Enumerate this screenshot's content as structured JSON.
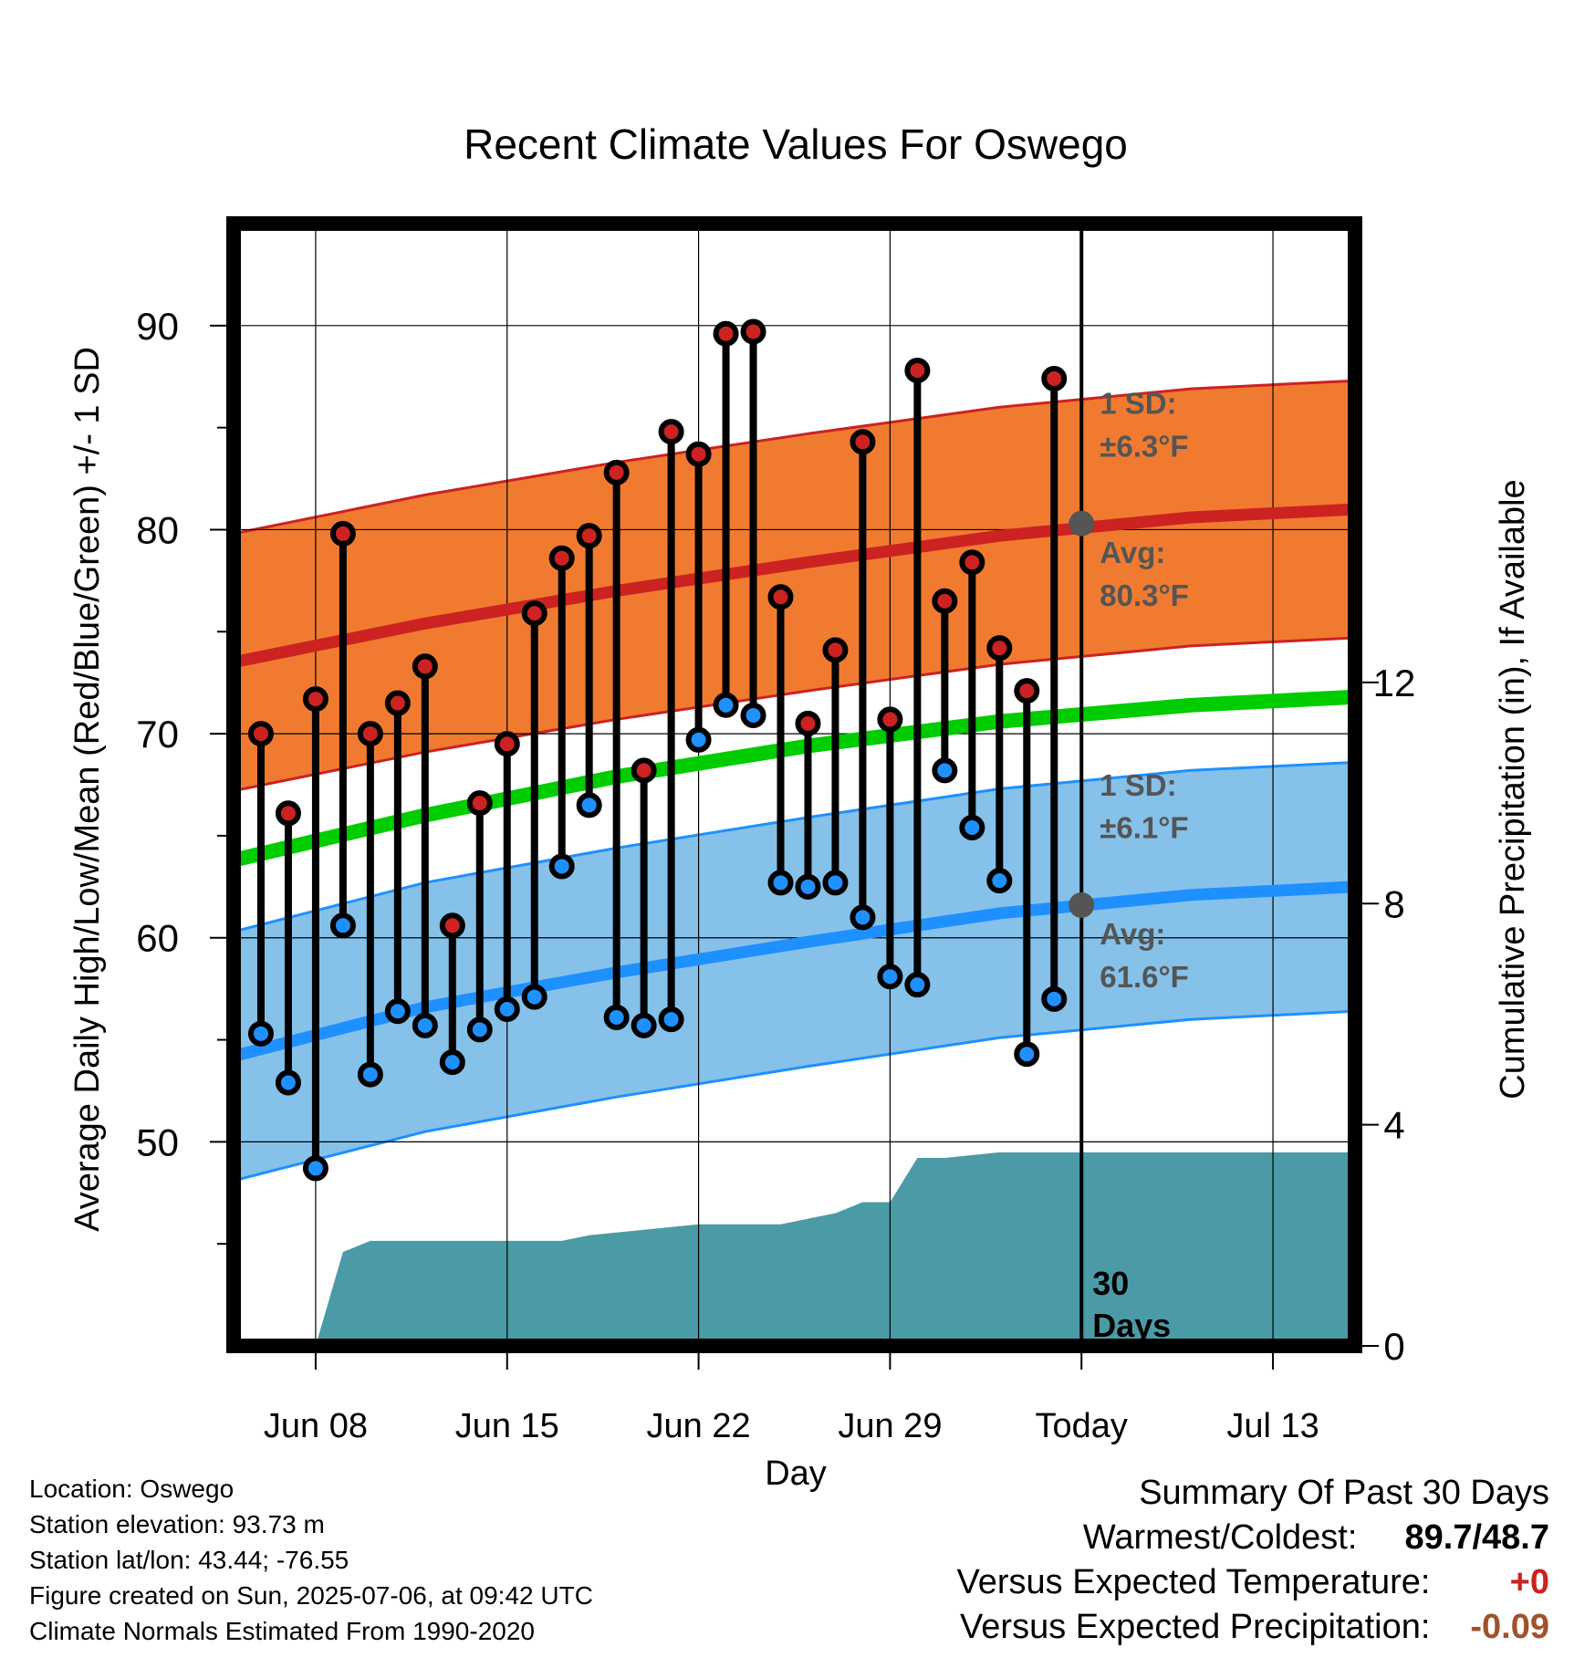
{
  "chart_data": {
    "type": "line",
    "title": "Recent Climate Values For Oswego",
    "xlabel": "Day",
    "ylabel": "Average Daily High/Low/Mean (Red/Blue/Green) +/- 1 SD",
    "y2label": "Cumulative Precipitation (in), If Available",
    "ylim": [
      40,
      95
    ],
    "y2lim": [
      0,
      20.3
    ],
    "yticks": [
      50,
      60,
      70,
      80,
      90
    ],
    "y2ticks": [
      0,
      4,
      8,
      12
    ],
    "x_tick_labels": [
      "Jun 08",
      "Jun 15",
      "Jun 22",
      "Jun 29",
      "Today",
      "Jul 13"
    ],
    "xlim": [
      "2025-06-05",
      "2025-07-16"
    ],
    "x_ticks": [
      "2025-06-08",
      "2025-06-15",
      "2025-06-22",
      "2025-06-29",
      "2025-07-06",
      "2025-07-13"
    ],
    "today": "2025-07-06",
    "grid": true,
    "series": [
      {
        "name": "Daily High",
        "color": "#cc2222",
        "dates": [
          "2025-06-06",
          "2025-06-07",
          "2025-06-08",
          "2025-06-09",
          "2025-06-10",
          "2025-06-11",
          "2025-06-12",
          "2025-06-13",
          "2025-06-14",
          "2025-06-15",
          "2025-06-16",
          "2025-06-17",
          "2025-06-18",
          "2025-06-19",
          "2025-06-20",
          "2025-06-21",
          "2025-06-22",
          "2025-06-23",
          "2025-06-24",
          "2025-06-25",
          "2025-06-26",
          "2025-06-27",
          "2025-06-28",
          "2025-06-29",
          "2025-06-30",
          "2025-07-01",
          "2025-07-02",
          "2025-07-03",
          "2025-07-04",
          "2025-07-05"
        ],
        "values": [
          70.0,
          66.1,
          71.7,
          79.8,
          70.0,
          71.5,
          73.3,
          60.6,
          66.6,
          69.5,
          75.9,
          78.6,
          79.7,
          82.8,
          68.2,
          84.8,
          83.7,
          89.6,
          89.7,
          76.7,
          70.5,
          74.1,
          84.3,
          70.7,
          87.8,
          76.5,
          78.4,
          74.2,
          72.1,
          87.4
        ]
      },
      {
        "name": "Daily Low",
        "color": "#1e90ff",
        "dates": [
          "2025-06-06",
          "2025-06-07",
          "2025-06-08",
          "2025-06-09",
          "2025-06-10",
          "2025-06-11",
          "2025-06-12",
          "2025-06-13",
          "2025-06-14",
          "2025-06-15",
          "2025-06-16",
          "2025-06-17",
          "2025-06-18",
          "2025-06-19",
          "2025-06-20",
          "2025-06-21",
          "2025-06-22",
          "2025-06-23",
          "2025-06-24",
          "2025-06-25",
          "2025-06-26",
          "2025-06-27",
          "2025-06-28",
          "2025-06-29",
          "2025-06-30",
          "2025-07-01",
          "2025-07-02",
          "2025-07-03",
          "2025-07-04",
          "2025-07-05"
        ],
        "values": [
          55.3,
          52.9,
          48.7,
          60.6,
          53.3,
          56.4,
          55.7,
          53.9,
          55.5,
          56.5,
          57.1,
          63.5,
          66.5,
          56.1,
          55.7,
          56.0,
          69.7,
          71.4,
          70.9,
          62.7,
          62.5,
          62.7,
          61.0,
          58.1,
          57.7,
          68.2,
          65.4,
          62.8,
          54.3,
          57.0
        ]
      }
    ],
    "normals": {
      "dates": [
        "2025-06-05",
        "2025-06-12",
        "2025-06-19",
        "2025-06-26",
        "2025-07-03",
        "2025-07-10",
        "2025-07-16"
      ],
      "high_avg": [
        73.5,
        75.4,
        77.0,
        78.4,
        79.7,
        80.6,
        81.0
      ],
      "high_sd": 6.3,
      "low_avg": [
        54.2,
        56.6,
        58.3,
        59.8,
        61.2,
        62.1,
        62.5
      ],
      "low_sd": 6.1,
      "mean_avg": [
        63.8,
        66.0,
        67.9,
        69.4,
        70.6,
        71.4,
        71.8
      ],
      "high_color": "#cc2222",
      "high_band_color": "#f07b30",
      "low_color": "#1e90ff",
      "low_band_color": "#85c1e9",
      "mean_color": "#00cc00"
    },
    "precipitation": {
      "color": "#4a9ba6",
      "dates": [
        "2025-06-05",
        "2025-06-07",
        "2025-06-08",
        "2025-06-09",
        "2025-06-10",
        "2025-06-17",
        "2025-06-18",
        "2025-06-22",
        "2025-06-25",
        "2025-06-26",
        "2025-06-27",
        "2025-06-28",
        "2025-06-29",
        "2025-06-30",
        "2025-07-01",
        "2025-07-03",
        "2025-07-16"
      ],
      "values": [
        0.0,
        0.0,
        0.0,
        1.7,
        1.9,
        1.9,
        2.0,
        2.2,
        2.2,
        2.3,
        2.4,
        2.6,
        2.6,
        3.4,
        3.4,
        3.5,
        3.5
      ]
    },
    "annotations": {
      "high_sd": "1 SD:",
      "high_sd_value": "±6.3°F",
      "high_avg": "Avg:",
      "high_avg_value": "80.3°F",
      "low_sd": "1 SD:",
      "low_sd_value": "±6.1°F",
      "low_avg": "Avg:",
      "low_avg_value": "61.6°F",
      "today_marker_high": 80.3,
      "today_marker_low": 61.6,
      "days_count": "30",
      "days_word": "Days"
    }
  },
  "footer": {
    "location": "Location: Oswego",
    "elevation": "Station elevation: 93.73 m",
    "latlon": "Station lat/lon: 43.44; -76.55",
    "created": "Figure created on Sun, 2025-07-06, at 09:42 UTC",
    "normals": "Climate Normals Estimated From 1990-2020"
  },
  "summary": {
    "title": "Summary Of Past 30 Days",
    "warm_cold_label": "Warmest/Coldest:",
    "warm_cold_value": "89.7/48.7",
    "temp_label": "Versus Expected Temperature:",
    "temp_value": "+0",
    "temp_color": "#cc2222",
    "precip_label": "Versus Expected Precipitation:",
    "precip_value": "-0.09",
    "precip_color": "#a0522d"
  }
}
